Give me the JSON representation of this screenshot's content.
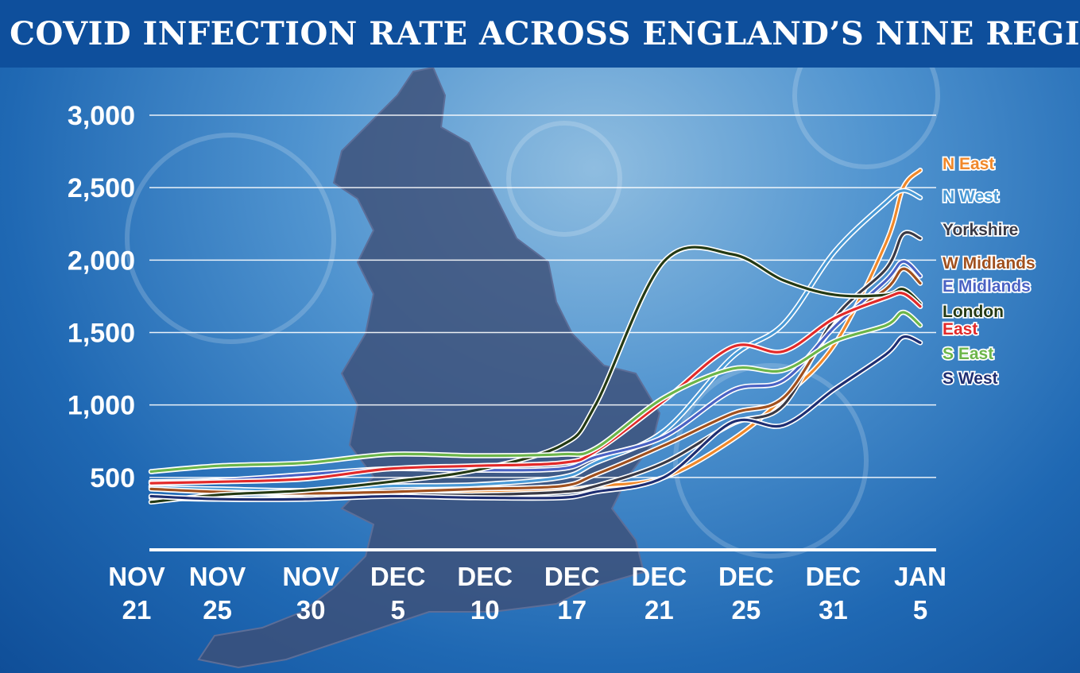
{
  "title": "THE COVID INFECTION RATE ACROSS ENGLAND’S NINE REGIONS",
  "chart_data": {
    "type": "line",
    "title": "THE COVID INFECTION RATE ACROSS ENGLAND’S NINE REGIONS",
    "xlabel": "",
    "ylabel": "",
    "ylim": [
      0,
      3000
    ],
    "yticks": [
      500,
      1000,
      1500,
      2000,
      2500,
      3000
    ],
    "ytick_labels": [
      "500",
      "1,000",
      "1,500",
      "2,000",
      "2,500",
      "3,000"
    ],
    "grid": true,
    "legend_placement": "right",
    "x_ticks": [
      {
        "line1": "NOV",
        "line2": "21"
      },
      {
        "line1": "NOV",
        "line2": "25"
      },
      {
        "line1": "NOV",
        "line2": "30"
      },
      {
        "line1": "DEC",
        "line2": "5"
      },
      {
        "line1": "DEC",
        "line2": "10"
      },
      {
        "line1": "DEC",
        "line2": "17"
      },
      {
        "line1": "DEC",
        "line2": "21"
      },
      {
        "line1": "DEC",
        "line2": "25"
      },
      {
        "line1": "DEC",
        "line2": "31"
      },
      {
        "line1": "JAN",
        "line2": "5"
      }
    ],
    "x": [
      "2020-11-21",
      "2020-11-25",
      "2020-11-30",
      "2020-12-05",
      "2020-12-10",
      "2020-12-15",
      "2020-12-17",
      "2020-12-21",
      "2020-12-25",
      "2020-12-28",
      "2020-12-31",
      "2021-01-03",
      "2021-01-04",
      "2021-01-05"
    ],
    "series": [
      {
        "name": "N East",
        "color": "#f0882a",
        "values": [
          440,
          400,
          390,
          400,
          400,
          410,
          440,
          500,
          760,
          1050,
          1420,
          2120,
          2500,
          2620
        ]
      },
      {
        "name": "N West",
        "color": "#4a9ad6",
        "values": [
          430,
          420,
          410,
          440,
          450,
          500,
          600,
          820,
          1330,
          1560,
          2060,
          2400,
          2480,
          2430
        ]
      },
      {
        "name": "Yorkshire",
        "color": "#3a3a46",
        "values": [
          360,
          350,
          360,
          380,
          380,
          400,
          440,
          600,
          870,
          1000,
          1600,
          1940,
          2180,
          2150
        ]
      },
      {
        "name": "W Midlands",
        "color": "#a0501e",
        "values": [
          420,
          400,
          390,
          400,
          420,
          440,
          520,
          720,
          940,
          1050,
          1550,
          1800,
          1940,
          1840
        ]
      },
      {
        "name": "E Midlands",
        "color": "#4a62c4",
        "values": [
          470,
          480,
          520,
          560,
          550,
          560,
          640,
          780,
          1100,
          1170,
          1540,
          1860,
          1990,
          1890
        ]
      },
      {
        "name": "London",
        "color": "#243a14",
        "values": [
          330,
          380,
          410,
          470,
          550,
          720,
          1000,
          1990,
          2040,
          1860,
          1760,
          1760,
          1800,
          1700
        ]
      },
      {
        "name": "East",
        "color": "#e22a2a",
        "values": [
          460,
          470,
          490,
          560,
          580,
          600,
          680,
          1030,
          1400,
          1370,
          1600,
          1740,
          1770,
          1680
        ]
      },
      {
        "name": "S East",
        "color": "#6cb64a",
        "values": [
          540,
          580,
          600,
          660,
          650,
          660,
          700,
          1050,
          1250,
          1240,
          1440,
          1550,
          1640,
          1550
        ]
      },
      {
        "name": "S West",
        "color": "#1e2e72",
        "values": [
          370,
          350,
          350,
          370,
          360,
          360,
          400,
          500,
          880,
          860,
          1110,
          1350,
          1470,
          1430
        ]
      }
    ]
  }
}
